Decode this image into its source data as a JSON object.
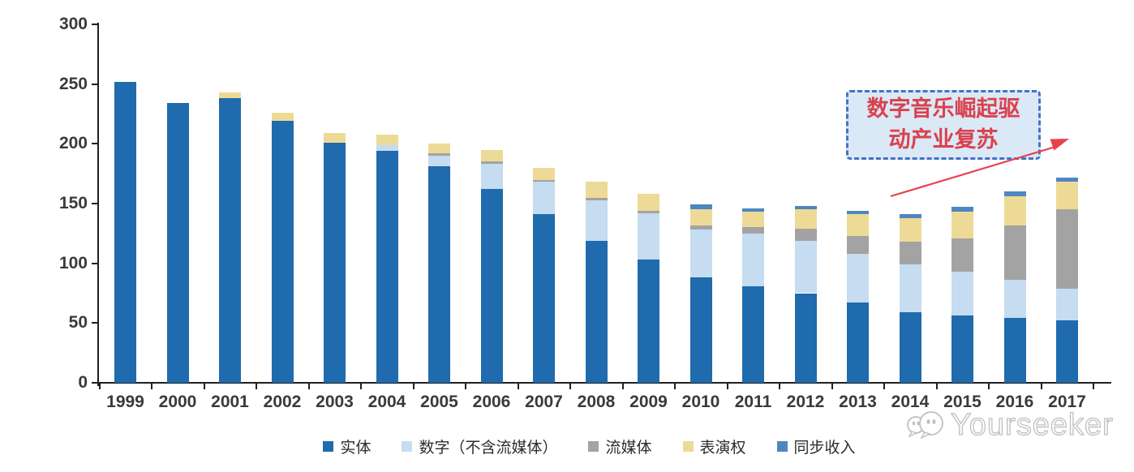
{
  "chart_data": {
    "type": "bar",
    "stacked": true,
    "title": "",
    "xlabel": "",
    "ylabel": "",
    "categories": [
      "1999",
      "2000",
      "2001",
      "2002",
      "2003",
      "2004",
      "2005",
      "2006",
      "2007",
      "2008",
      "2009",
      "2010",
      "2011",
      "2012",
      "2013",
      "2014",
      "2015",
      "2016",
      "2017"
    ],
    "series": [
      {
        "name": "实体",
        "color": "#1f6bad",
        "values": [
          252,
          234,
          238,
          219,
          201,
          194,
          181,
          162,
          141,
          119,
          103,
          88,
          81,
          75,
          67,
          59,
          56,
          54,
          52
        ]
      },
      {
        "name": "数字（不含流媒体）",
        "color": "#c5dcf1",
        "values": [
          0,
          0,
          0,
          0,
          0,
          5,
          9,
          21,
          27,
          34,
          39,
          40,
          44,
          44,
          41,
          40,
          37,
          32,
          27
        ]
      },
      {
        "name": "流媒体",
        "color": "#a3a3a3",
        "values": [
          0,
          0,
          0,
          0,
          0,
          0,
          2,
          2,
          2,
          2,
          2,
          4,
          5,
          10,
          15,
          19,
          28,
          46,
          66
        ]
      },
      {
        "name": "表演权",
        "color": "#eeda97",
        "values": [
          0,
          0,
          5,
          7,
          8,
          9,
          8,
          10,
          10,
          13,
          14,
          13,
          13,
          16,
          18,
          20,
          22,
          24,
          23
        ]
      },
      {
        "name": "同步收入",
        "color": "#4e86c2",
        "values": [
          0,
          0,
          0,
          0,
          0,
          0,
          0,
          0,
          0,
          0,
          0,
          4,
          3,
          3,
          3,
          3,
          4,
          4,
          4
        ]
      }
    ],
    "ylim": [
      0,
      300
    ],
    "yticks": [
      0,
      50,
      100,
      150,
      200,
      250,
      300
    ],
    "grid": false,
    "legend_position": "bottom",
    "axis_color": "#1f1f1f"
  },
  "annotation": {
    "text": "数字音乐崛起驱动产业复苏",
    "text_color": "#d9414e",
    "border_color": "#4472c4",
    "bg_color": "#dbe8f6",
    "arrow_color": "#e8414e"
  },
  "watermark": {
    "text": "Yourseeker",
    "color": "#bfbfbf"
  }
}
